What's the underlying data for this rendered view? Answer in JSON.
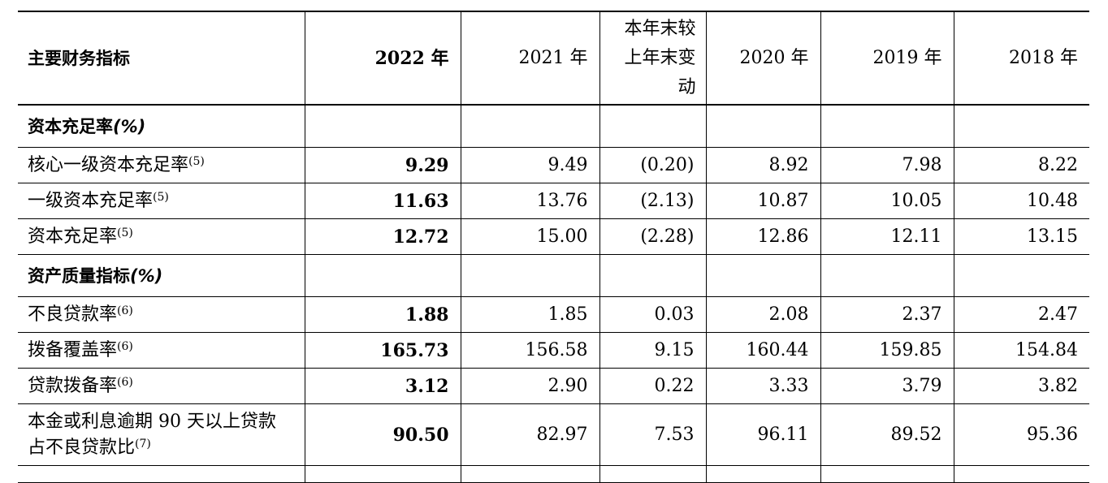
{
  "header": {
    "label": "主要财务指标",
    "y2022": "2022 年",
    "y2021": "2021 年",
    "change": "本年末较上年末变动",
    "y2020": "2020 年",
    "y2019": "2019 年",
    "y2018": "2018 年"
  },
  "sections": {
    "capital": {
      "title": "资本充足率",
      "pct": "(%)"
    },
    "asset": {
      "title": "资产质量指标",
      "pct": "(%)"
    }
  },
  "rows": {
    "cet1": {
      "label": "核心一级资本充足率",
      "note": "(5)",
      "v2022": "9.29",
      "v2021": "9.49",
      "change": "(0.20)",
      "v2020": "8.92",
      "v2019": "7.98",
      "v2018": "8.22"
    },
    "tier1": {
      "label": "一级资本充足率",
      "note": "(5)",
      "v2022": "11.63",
      "v2021": "13.76",
      "change": "(2.13)",
      "v2020": "10.87",
      "v2019": "10.05",
      "v2018": "10.48"
    },
    "car": {
      "label": "资本充足率",
      "note": "(5)",
      "v2022": "12.72",
      "v2021": "15.00",
      "change": "(2.28)",
      "v2020": "12.86",
      "v2019": "12.11",
      "v2018": "13.15"
    },
    "npl": {
      "label": "不良贷款率",
      "note": "(6)",
      "v2022": "1.88",
      "v2021": "1.85",
      "change": "0.03",
      "v2020": "2.08",
      "v2019": "2.37",
      "v2018": "2.47"
    },
    "coverage": {
      "label": "拨备覆盖率",
      "note": "(6)",
      "v2022": "165.73",
      "v2021": "156.58",
      "change": "9.15",
      "v2020": "160.44",
      "v2019": "159.85",
      "v2018": "154.84"
    },
    "provision": {
      "label": "贷款拨备率",
      "note": "(6)",
      "v2022": "3.12",
      "v2021": "2.90",
      "change": "0.22",
      "v2020": "3.33",
      "v2019": "3.79",
      "v2018": "3.82"
    },
    "overdue": {
      "label": "本金或利息逾期 90 天以上贷款占不良贷款比",
      "note": "(7)",
      "v2022": "90.50",
      "v2021": "82.97",
      "change": "7.53",
      "v2020": "96.11",
      "v2019": "89.52",
      "v2018": "95.36"
    }
  }
}
